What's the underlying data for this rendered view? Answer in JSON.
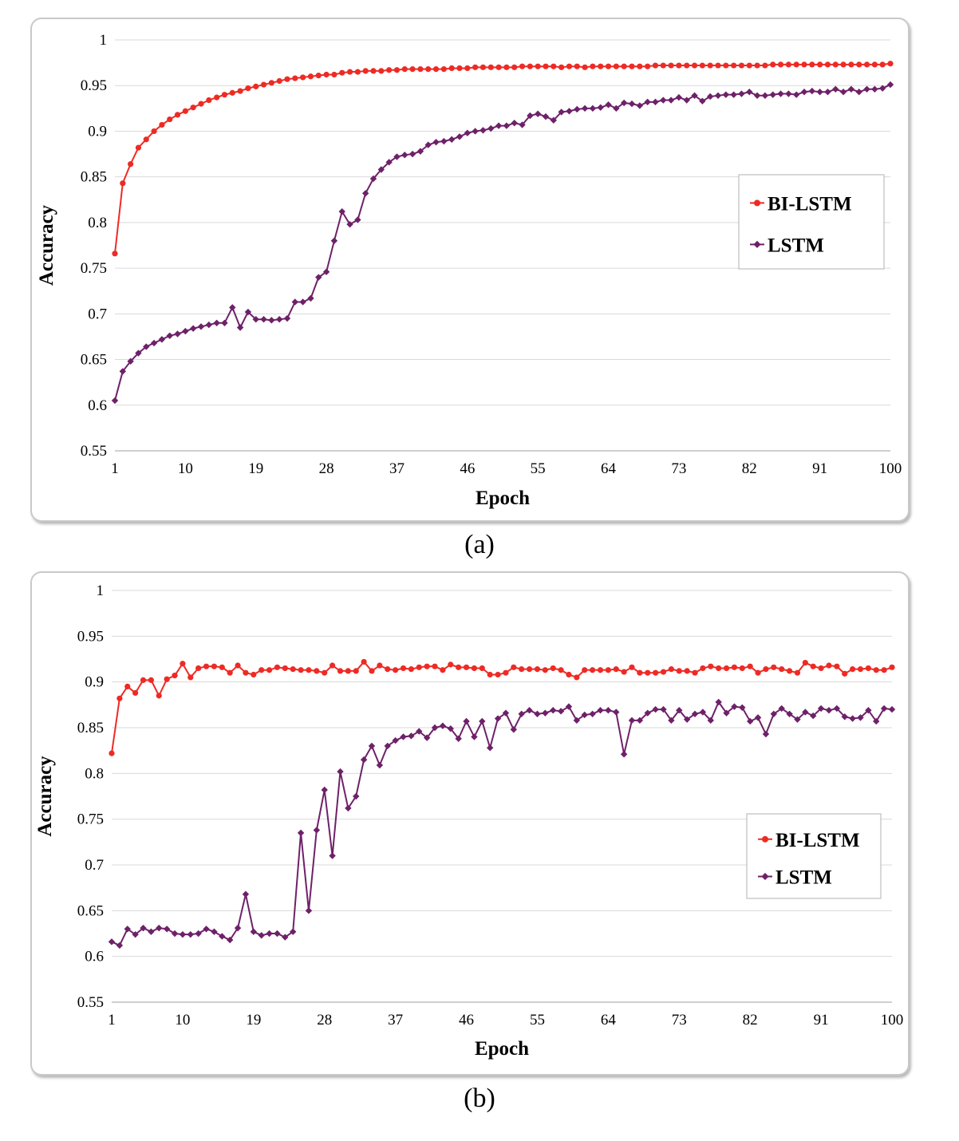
{
  "chart_data": [
    {
      "type": "line",
      "caption": "(a)",
      "xlabel": "Epoch",
      "ylabel": "Accuracy",
      "xlim": [
        1,
        100
      ],
      "ylim": [
        0.55,
        1
      ],
      "y_ticks": [
        "0.55",
        "0.6",
        "0.65",
        "0.7",
        "0.75",
        "0.8",
        "0.85",
        "0.9",
        "0.95",
        "1"
      ],
      "x_ticks": [
        "1",
        "10",
        "19",
        "28",
        "37",
        "46",
        "55",
        "64",
        "73",
        "82",
        "91",
        "100"
      ],
      "grid": true,
      "legend_position": "right",
      "series": [
        {
          "name": "BI-LSTM",
          "color": "#ee2a24",
          "marker": "circle",
          "x": [
            1,
            2,
            3,
            4,
            5,
            6,
            7,
            8,
            9,
            10,
            11,
            12,
            13,
            14,
            15,
            16,
            17,
            18,
            19,
            20,
            21,
            22,
            23,
            24,
            25,
            26,
            27,
            28,
            29,
            30,
            31,
            32,
            33,
            34,
            35,
            36,
            37,
            38,
            39,
            40,
            41,
            42,
            43,
            44,
            45,
            46,
            47,
            48,
            49,
            50,
            51,
            52,
            53,
            54,
            55,
            56,
            57,
            58,
            59,
            60,
            61,
            62,
            63,
            64,
            65,
            66,
            67,
            68,
            69,
            70,
            71,
            72,
            73,
            74,
            75,
            76,
            77,
            78,
            79,
            80,
            81,
            82,
            83,
            84,
            85,
            86,
            87,
            88,
            89,
            90,
            91,
            92,
            93,
            94,
            95,
            96,
            97,
            98,
            99,
            100
          ],
          "values": [
            0.766,
            0.843,
            0.864,
            0.882,
            0.891,
            0.9,
            0.907,
            0.913,
            0.918,
            0.922,
            0.926,
            0.93,
            0.934,
            0.937,
            0.94,
            0.942,
            0.944,
            0.947,
            0.949,
            0.951,
            0.953,
            0.955,
            0.957,
            0.958,
            0.959,
            0.96,
            0.961,
            0.962,
            0.962,
            0.964,
            0.965,
            0.965,
            0.966,
            0.966,
            0.966,
            0.967,
            0.967,
            0.968,
            0.968,
            0.968,
            0.968,
            0.968,
            0.968,
            0.969,
            0.969,
            0.969,
            0.97,
            0.97,
            0.97,
            0.97,
            0.97,
            0.97,
            0.971,
            0.971,
            0.971,
            0.971,
            0.971,
            0.97,
            0.971,
            0.971,
            0.97,
            0.971,
            0.971,
            0.971,
            0.971,
            0.971,
            0.971,
            0.971,
            0.971,
            0.972,
            0.972,
            0.972,
            0.972,
            0.972,
            0.972,
            0.972,
            0.972,
            0.972,
            0.972,
            0.972,
            0.972,
            0.972,
            0.972,
            0.972,
            0.973,
            0.973,
            0.973,
            0.973,
            0.973,
            0.973,
            0.973,
            0.973,
            0.973,
            0.973,
            0.973,
            0.973,
            0.973,
            0.973,
            0.973,
            0.974
          ]
        },
        {
          "name": "LSTM",
          "color": "#6e2169",
          "marker": "diamond",
          "x": [
            1,
            2,
            3,
            4,
            5,
            6,
            7,
            8,
            9,
            10,
            11,
            12,
            13,
            14,
            15,
            16,
            17,
            18,
            19,
            20,
            21,
            22,
            23,
            24,
            25,
            26,
            27,
            28,
            29,
            30,
            31,
            32,
            33,
            34,
            35,
            36,
            37,
            38,
            39,
            40,
            41,
            42,
            43,
            44,
            45,
            46,
            47,
            48,
            49,
            50,
            51,
            52,
            53,
            54,
            55,
            56,
            57,
            58,
            59,
            60,
            61,
            62,
            63,
            64,
            65,
            66,
            67,
            68,
            69,
            70,
            71,
            72,
            73,
            74,
            75,
            76,
            77,
            78,
            79,
            80,
            81,
            82,
            83,
            84,
            85,
            86,
            87,
            88,
            89,
            90,
            91,
            92,
            93,
            94,
            95,
            96,
            97,
            98,
            99,
            100
          ],
          "values": [
            0.605,
            0.637,
            0.648,
            0.657,
            0.664,
            0.668,
            0.672,
            0.676,
            0.678,
            0.681,
            0.684,
            0.686,
            0.688,
            0.69,
            0.69,
            0.707,
            0.685,
            0.702,
            0.694,
            0.694,
            0.693,
            0.694,
            0.695,
            0.713,
            0.713,
            0.717,
            0.74,
            0.746,
            0.78,
            0.812,
            0.798,
            0.803,
            0.832,
            0.848,
            0.858,
            0.866,
            0.872,
            0.874,
            0.875,
            0.878,
            0.885,
            0.888,
            0.889,
            0.891,
            0.894,
            0.898,
            0.9,
            0.901,
            0.903,
            0.906,
            0.906,
            0.909,
            0.907,
            0.917,
            0.919,
            0.916,
            0.912,
            0.921,
            0.922,
            0.924,
            0.925,
            0.925,
            0.926,
            0.929,
            0.925,
            0.931,
            0.93,
            0.928,
            0.932,
            0.932,
            0.934,
            0.934,
            0.937,
            0.934,
            0.939,
            0.933,
            0.938,
            0.939,
            0.94,
            0.94,
            0.941,
            0.943,
            0.939,
            0.939,
            0.94,
            0.941,
            0.941,
            0.94,
            0.943,
            0.944,
            0.943,
            0.943,
            0.946,
            0.943,
            0.946,
            0.943,
            0.946,
            0.946,
            0.947,
            0.951
          ]
        }
      ]
    },
    {
      "type": "line",
      "caption": "(b)",
      "xlabel": "Epoch",
      "ylabel": "Accuracy",
      "xlim": [
        1,
        100
      ],
      "ylim": [
        0.55,
        1
      ],
      "y_ticks": [
        "0.55",
        "0.6",
        "0.65",
        "0.7",
        "0.75",
        "0.8",
        "0.85",
        "0.9",
        "0.95",
        "1"
      ],
      "x_ticks": [
        "1",
        "10",
        "19",
        "28",
        "37",
        "46",
        "55",
        "64",
        "73",
        "82",
        "91",
        "100"
      ],
      "grid": true,
      "legend_position": "right",
      "series": [
        {
          "name": "BI-LSTM",
          "color": "#ee2a24",
          "marker": "circle",
          "x": [
            1,
            2,
            3,
            4,
            5,
            6,
            7,
            8,
            9,
            10,
            11,
            12,
            13,
            14,
            15,
            16,
            17,
            18,
            19,
            20,
            21,
            22,
            23,
            24,
            25,
            26,
            27,
            28,
            29,
            30,
            31,
            32,
            33,
            34,
            35,
            36,
            37,
            38,
            39,
            40,
            41,
            42,
            43,
            44,
            45,
            46,
            47,
            48,
            49,
            50,
            51,
            52,
            53,
            54,
            55,
            56,
            57,
            58,
            59,
            60,
            61,
            62,
            63,
            64,
            65,
            66,
            67,
            68,
            69,
            70,
            71,
            72,
            73,
            74,
            75,
            76,
            77,
            78,
            79,
            80,
            81,
            82,
            83,
            84,
            85,
            86,
            87,
            88,
            89,
            90,
            91,
            92,
            93,
            94,
            95,
            96,
            97,
            98,
            99,
            100
          ],
          "values": [
            0.822,
            0.882,
            0.895,
            0.888,
            0.902,
            0.902,
            0.885,
            0.903,
            0.907,
            0.92,
            0.905,
            0.915,
            0.917,
            0.917,
            0.916,
            0.91,
            0.918,
            0.91,
            0.908,
            0.913,
            0.913,
            0.916,
            0.915,
            0.914,
            0.913,
            0.913,
            0.912,
            0.91,
            0.918,
            0.912,
            0.912,
            0.912,
            0.922,
            0.912,
            0.918,
            0.914,
            0.913,
            0.915,
            0.914,
            0.916,
            0.917,
            0.917,
            0.913,
            0.919,
            0.916,
            0.916,
            0.915,
            0.915,
            0.908,
            0.908,
            0.91,
            0.916,
            0.914,
            0.914,
            0.914,
            0.913,
            0.915,
            0.913,
            0.908,
            0.905,
            0.913,
            0.913,
            0.913,
            0.913,
            0.914,
            0.911,
            0.916,
            0.91,
            0.91,
            0.91,
            0.911,
            0.914,
            0.912,
            0.912,
            0.91,
            0.915,
            0.917,
            0.915,
            0.915,
            0.916,
            0.915,
            0.917,
            0.91,
            0.914,
            0.916,
            0.914,
            0.912,
            0.91,
            0.921,
            0.917,
            0.915,
            0.918,
            0.917,
            0.909,
            0.914,
            0.914,
            0.915,
            0.913,
            0.913,
            0.916
          ]
        },
        {
          "name": "LSTM",
          "color": "#6e2169",
          "marker": "diamond",
          "x": [
            1,
            2,
            3,
            4,
            5,
            6,
            7,
            8,
            9,
            10,
            11,
            12,
            13,
            14,
            15,
            16,
            17,
            18,
            19,
            20,
            21,
            22,
            23,
            24,
            25,
            26,
            27,
            28,
            29,
            30,
            31,
            32,
            33,
            34,
            35,
            36,
            37,
            38,
            39,
            40,
            41,
            42,
            43,
            44,
            45,
            46,
            47,
            48,
            49,
            50,
            51,
            52,
            53,
            54,
            55,
            56,
            57,
            58,
            59,
            60,
            61,
            62,
            63,
            64,
            65,
            66,
            67,
            68,
            69,
            70,
            71,
            72,
            73,
            74,
            75,
            76,
            77,
            78,
            79,
            80,
            81,
            82,
            83,
            84,
            85,
            86,
            87,
            88,
            89,
            90,
            91,
            92,
            93,
            94,
            95,
            96,
            97,
            98,
            99,
            100
          ],
          "values": [
            0.616,
            0.612,
            0.63,
            0.624,
            0.631,
            0.627,
            0.631,
            0.63,
            0.625,
            0.624,
            0.624,
            0.625,
            0.63,
            0.627,
            0.622,
            0.618,
            0.631,
            0.668,
            0.627,
            0.623,
            0.625,
            0.625,
            0.621,
            0.627,
            0.735,
            0.65,
            0.738,
            0.782,
            0.71,
            0.802,
            0.762,
            0.775,
            0.815,
            0.83,
            0.809,
            0.83,
            0.836,
            0.84,
            0.841,
            0.846,
            0.839,
            0.85,
            0.852,
            0.849,
            0.838,
            0.857,
            0.84,
            0.857,
            0.828,
            0.86,
            0.866,
            0.848,
            0.865,
            0.869,
            0.865,
            0.866,
            0.869,
            0.868,
            0.873,
            0.858,
            0.864,
            0.865,
            0.869,
            0.869,
            0.867,
            0.821,
            0.858,
            0.858,
            0.866,
            0.87,
            0.87,
            0.858,
            0.869,
            0.859,
            0.865,
            0.867,
            0.858,
            0.878,
            0.866,
            0.873,
            0.872,
            0.857,
            0.861,
            0.843,
            0.865,
            0.871,
            0.865,
            0.859,
            0.867,
            0.863,
            0.871,
            0.869,
            0.871,
            0.862,
            0.86,
            0.861,
            0.869,
            0.857,
            0.871,
            0.87
          ]
        }
      ]
    }
  ]
}
